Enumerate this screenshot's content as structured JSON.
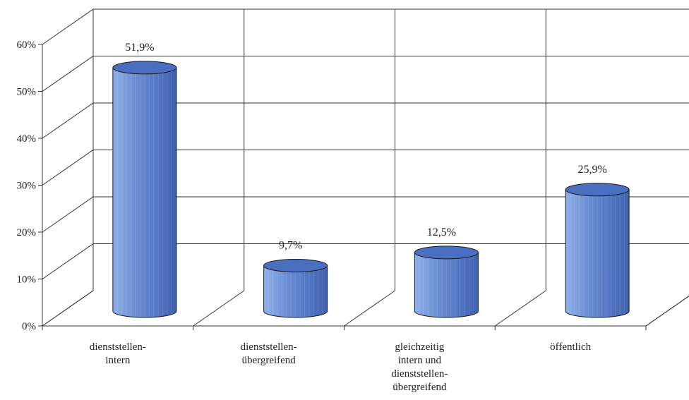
{
  "chart_data": {
    "type": "bar",
    "style": "3d-cylinder",
    "title": "",
    "xlabel": "",
    "ylabel": "",
    "categories": [
      [
        "dienststellen-",
        "intern"
      ],
      [
        "dienststellen-",
        "übergreifend"
      ],
      [
        "gleichzeitig",
        "intern und",
        "dienststellen-",
        "übergreifend"
      ],
      [
        "öffentlich"
      ]
    ],
    "values": [
      51.9,
      9.7,
      12.5,
      25.9
    ],
    "data_labels": [
      "51,9%",
      "9,7%",
      "12,5%",
      "25,9%"
    ],
    "ylim": [
      0,
      60
    ],
    "yticks": [
      0,
      10,
      20,
      30,
      40,
      50,
      60
    ],
    "ytick_labels": [
      "0%",
      "10%",
      "20%",
      "30%",
      "40%",
      "50%",
      "60%"
    ],
    "grid": true,
    "legend": "none",
    "colors": {
      "bar_body": "#6b8fd4",
      "bar_dark": "#3f61ad",
      "bar_top": "#4a6fc0",
      "outline": "#1a1a1a",
      "grid": "#333333"
    }
  }
}
